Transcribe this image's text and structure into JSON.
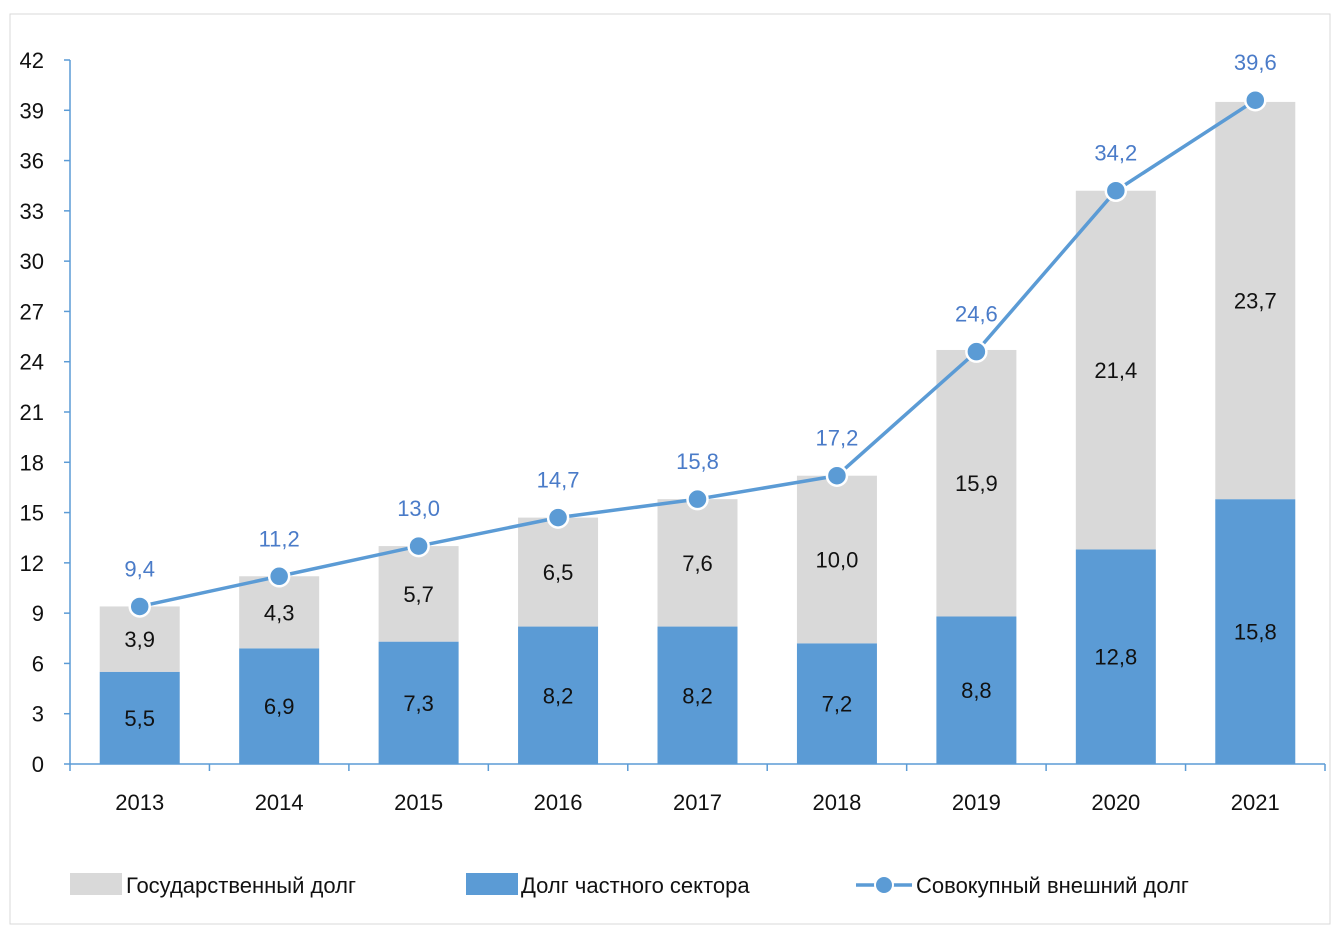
{
  "chart_data": {
    "type": "bar",
    "stacked": true,
    "categories": [
      "2013",
      "2014",
      "2015",
      "2016",
      "2017",
      "2018",
      "2019",
      "2020",
      "2021"
    ],
    "series": [
      {
        "name": "Долг частного сектора",
        "kind": "bar",
        "color": "#5b9bd5",
        "values": [
          5.5,
          6.9,
          7.3,
          8.2,
          8.2,
          7.2,
          8.8,
          12.8,
          15.8
        ]
      },
      {
        "name": "Государственный долг",
        "kind": "bar",
        "color": "#d9d9d9",
        "values": [
          3.9,
          4.3,
          5.7,
          6.5,
          7.6,
          10.0,
          15.9,
          21.4,
          23.7
        ]
      },
      {
        "name": "Совокупный внешний долг",
        "kind": "line",
        "color": "#5b9bd5",
        "values": [
          9.4,
          11.2,
          13.0,
          14.7,
          15.8,
          17.2,
          24.6,
          34.2,
          39.6
        ]
      }
    ],
    "segment_labels": {
      "private": [
        "5,5",
        "6,9",
        "7,3",
        "8,2",
        "8,2",
        "7,2",
        "8,8",
        "12,8",
        "15,8"
      ],
      "public": [
        "3,9",
        "4,3",
        "5,7",
        "6,5",
        "7,6",
        "10,0",
        "15,9",
        "21,4",
        "23,7"
      ],
      "total": [
        "9,4",
        "11,2",
        "13,0",
        "14,7",
        "15,8",
        "17,2",
        "24,6",
        "34,2",
        "39,6"
      ]
    },
    "ylim": [
      0,
      42
    ],
    "yticks": [
      0,
      3,
      6,
      9,
      12,
      15,
      18,
      21,
      24,
      27,
      30,
      33,
      36,
      39,
      42
    ],
    "legend_position": "bottom",
    "legend": [
      {
        "label": "Государственный долг",
        "type": "bar",
        "color": "#d9d9d9"
      },
      {
        "label": "Долг частного сектора",
        "type": "bar",
        "color": "#5b9bd5"
      },
      {
        "label": "Совокупный внешний долг",
        "type": "line",
        "color": "#5b9bd5"
      }
    ],
    "colors": {
      "line": "#5b9bd5",
      "label_total": "#4a7bc8",
      "axis": "#5b9bd5"
    }
  }
}
